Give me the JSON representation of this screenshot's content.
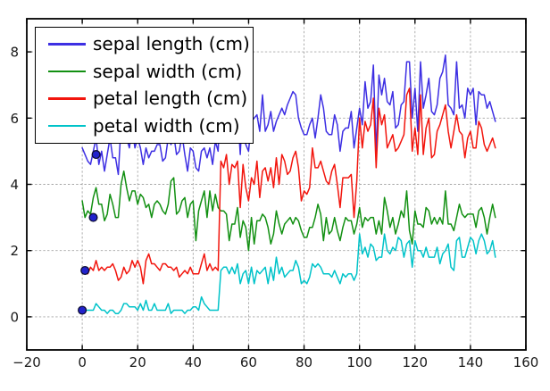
{
  "chart_data": {
    "type": "line",
    "title": "",
    "xlabel": "",
    "ylabel": "",
    "x_start": 0,
    "x_step": 1,
    "n_points": 150,
    "xlim": [
      -20,
      160
    ],
    "ylim": [
      -1,
      9
    ],
    "xticks": [
      -20,
      0,
      20,
      40,
      60,
      80,
      100,
      120,
      140,
      160
    ],
    "yticks": [
      0,
      2,
      4,
      6,
      8
    ],
    "grid": true,
    "grid_style": "dashed",
    "legend_position": "upper-left",
    "series": [
      {
        "name": "sepal length (cm)",
        "color": "#3d2fe3",
        "values": [
          5.1,
          4.9,
          4.7,
          4.6,
          5.0,
          5.4,
          4.6,
          5.0,
          4.4,
          4.9,
          5.4,
          4.8,
          4.8,
          4.3,
          5.8,
          5.7,
          5.4,
          5.1,
          5.7,
          5.1,
          5.4,
          5.1,
          4.6,
          5.1,
          4.8,
          5.0,
          5.0,
          5.2,
          5.2,
          4.7,
          4.8,
          5.4,
          5.2,
          5.5,
          4.9,
          5.0,
          5.5,
          4.9,
          4.4,
          5.1,
          5.0,
          4.5,
          4.4,
          5.0,
          5.1,
          4.8,
          5.1,
          4.6,
          5.3,
          5.0,
          7.0,
          6.4,
          6.9,
          5.5,
          6.5,
          5.7,
          6.3,
          4.9,
          6.6,
          5.2,
          5.0,
          5.9,
          6.0,
          6.1,
          5.6,
          6.7,
          5.6,
          5.8,
          6.2,
          5.6,
          5.9,
          6.1,
          6.3,
          6.1,
          6.4,
          6.6,
          6.8,
          6.7,
          6.0,
          5.7,
          5.5,
          5.5,
          5.8,
          6.0,
          5.4,
          6.0,
          6.7,
          6.3,
          5.6,
          5.5,
          5.5,
          6.1,
          5.8,
          5.0,
          5.6,
          5.7,
          5.7,
          6.2,
          5.1,
          5.7,
          6.3,
          5.8,
          7.1,
          6.3,
          6.5,
          7.6,
          4.9,
          7.3,
          6.7,
          7.2,
          6.5,
          6.4,
          6.8,
          5.7,
          5.8,
          6.4,
          6.5,
          7.7,
          7.7,
          6.0,
          6.9,
          5.6,
          7.7,
          6.3,
          6.7,
          7.2,
          6.2,
          6.1,
          6.4,
          7.2,
          7.4,
          7.9,
          6.4,
          6.3,
          6.1,
          7.7,
          6.3,
          6.4,
          6.0,
          6.9,
          6.7,
          6.9,
          5.8,
          6.8,
          6.7,
          6.7,
          6.3,
          6.5,
          6.2,
          5.9
        ]
      },
      {
        "name": "sepal width (cm)",
        "color": "#129012",
        "values": [
          3.5,
          3.0,
          3.2,
          3.1,
          3.6,
          3.9,
          3.4,
          3.4,
          2.9,
          3.1,
          3.7,
          3.4,
          3.0,
          3.0,
          4.0,
          4.4,
          3.9,
          3.5,
          3.8,
          3.8,
          3.4,
          3.7,
          3.6,
          3.3,
          3.4,
          3.0,
          3.4,
          3.5,
          3.4,
          3.2,
          3.1,
          3.4,
          4.1,
          4.2,
          3.1,
          3.2,
          3.5,
          3.6,
          3.0,
          3.4,
          3.5,
          2.3,
          3.2,
          3.5,
          3.8,
          3.0,
          3.8,
          3.2,
          3.7,
          3.3,
          3.2,
          3.2,
          3.1,
          2.3,
          2.8,
          2.8,
          3.3,
          2.4,
          2.9,
          2.7,
          2.0,
          3.0,
          2.2,
          2.9,
          2.9,
          3.1,
          3.0,
          2.7,
          2.2,
          2.5,
          3.2,
          2.8,
          2.5,
          2.8,
          2.9,
          3.0,
          2.8,
          3.0,
          2.9,
          2.6,
          2.4,
          2.4,
          2.7,
          2.7,
          3.0,
          3.4,
          3.1,
          2.3,
          3.0,
          2.5,
          2.6,
          3.0,
          2.6,
          2.3,
          2.7,
          3.0,
          2.9,
          2.9,
          2.5,
          2.8,
          3.3,
          2.7,
          3.0,
          2.9,
          3.0,
          3.0,
          2.5,
          2.9,
          2.5,
          3.6,
          3.2,
          2.7,
          3.0,
          2.5,
          2.8,
          3.2,
          3.0,
          3.8,
          2.6,
          2.2,
          3.2,
          2.8,
          2.8,
          2.7,
          3.3,
          3.2,
          2.8,
          3.0,
          2.8,
          3.0,
          2.8,
          3.8,
          2.8,
          2.8,
          2.6,
          3.0,
          3.4,
          3.1,
          3.0,
          3.1,
          3.1,
          3.1,
          2.7,
          3.2,
          3.3,
          3.0,
          2.5,
          3.0,
          3.4,
          3.0
        ]
      },
      {
        "name": "petal length (cm)",
        "color": "#f2150d",
        "values": [
          1.4,
          1.4,
          1.3,
          1.5,
          1.4,
          1.7,
          1.4,
          1.5,
          1.4,
          1.5,
          1.5,
          1.6,
          1.4,
          1.1,
          1.2,
          1.5,
          1.3,
          1.4,
          1.7,
          1.5,
          1.7,
          1.5,
          1.0,
          1.7,
          1.9,
          1.6,
          1.6,
          1.5,
          1.4,
          1.6,
          1.6,
          1.5,
          1.5,
          1.4,
          1.5,
          1.2,
          1.3,
          1.4,
          1.3,
          1.5,
          1.3,
          1.3,
          1.3,
          1.6,
          1.9,
          1.4,
          1.6,
          1.4,
          1.5,
          1.4,
          4.7,
          4.5,
          4.9,
          4.0,
          4.6,
          4.5,
          4.7,
          3.3,
          4.6,
          3.9,
          3.5,
          4.2,
          4.0,
          4.7,
          3.6,
          4.4,
          4.5,
          4.1,
          4.5,
          3.9,
          4.8,
          4.0,
          4.9,
          4.7,
          4.3,
          4.4,
          4.8,
          5.0,
          4.5,
          3.5,
          3.8,
          3.7,
          3.9,
          5.1,
          4.5,
          4.5,
          4.7,
          4.4,
          4.1,
          4.0,
          4.4,
          4.6,
          4.0,
          3.3,
          4.2,
          4.2,
          4.2,
          4.3,
          3.0,
          4.1,
          6.0,
          5.1,
          5.9,
          5.6,
          5.8,
          6.6,
          4.5,
          6.3,
          5.8,
          6.1,
          5.1,
          5.3,
          5.5,
          5.0,
          5.1,
          5.3,
          5.5,
          6.7,
          6.9,
          5.0,
          5.7,
          4.9,
          6.7,
          4.9,
          5.7,
          6.0,
          4.8,
          4.9,
          5.6,
          5.8,
          6.1,
          6.4,
          5.6,
          5.1,
          5.6,
          6.1,
          5.6,
          5.5,
          4.8,
          5.4,
          5.6,
          5.1,
          5.1,
          5.9,
          5.7,
          5.2,
          5.0,
          5.2,
          5.4,
          5.1
        ]
      },
      {
        "name": "petal width (cm)",
        "color": "#00c3c9",
        "values": [
          0.2,
          0.2,
          0.2,
          0.2,
          0.2,
          0.4,
          0.3,
          0.2,
          0.2,
          0.1,
          0.2,
          0.2,
          0.1,
          0.1,
          0.2,
          0.4,
          0.4,
          0.3,
          0.3,
          0.3,
          0.2,
          0.4,
          0.2,
          0.5,
          0.2,
          0.2,
          0.4,
          0.2,
          0.2,
          0.2,
          0.2,
          0.4,
          0.1,
          0.2,
          0.2,
          0.2,
          0.2,
          0.1,
          0.2,
          0.2,
          0.3,
          0.3,
          0.2,
          0.6,
          0.4,
          0.3,
          0.2,
          0.2,
          0.2,
          0.2,
          1.4,
          1.5,
          1.5,
          1.3,
          1.5,
          1.3,
          1.6,
          1.0,
          1.3,
          1.4,
          1.0,
          1.5,
          1.0,
          1.4,
          1.3,
          1.4,
          1.5,
          1.0,
          1.5,
          1.1,
          1.8,
          1.3,
          1.5,
          1.2,
          1.3,
          1.4,
          1.4,
          1.7,
          1.5,
          1.0,
          1.1,
          1.0,
          1.2,
          1.6,
          1.5,
          1.6,
          1.5,
          1.3,
          1.3,
          1.3,
          1.2,
          1.4,
          1.2,
          1.0,
          1.3,
          1.2,
          1.3,
          1.3,
          1.1,
          1.3,
          2.5,
          1.9,
          2.1,
          1.8,
          2.2,
          2.1,
          1.7,
          1.8,
          1.8,
          2.5,
          2.0,
          1.9,
          2.1,
          2.0,
          2.4,
          2.3,
          1.8,
          2.2,
          2.3,
          1.5,
          2.3,
          2.0,
          2.0,
          1.8,
          2.1,
          1.8,
          1.8,
          1.8,
          2.1,
          1.6,
          1.9,
          2.0,
          2.2,
          1.5,
          1.4,
          2.3,
          2.4,
          1.8,
          1.8,
          2.1,
          2.4,
          2.3,
          1.9,
          2.3,
          2.5,
          2.3,
          1.9,
          2.0,
          2.3,
          1.8
        ]
      }
    ],
    "scatter_markers": {
      "fill": "#2222cc",
      "edge": "#0d0d33",
      "points": [
        {
          "x": 0,
          "y": 0.2
        },
        {
          "x": 1,
          "y": 1.4
        },
        {
          "x": 4,
          "y": 3.0
        },
        {
          "x": 5,
          "y": 4.9
        }
      ]
    },
    "colors": {
      "axes": "#000000",
      "grid": "#a6a6a6",
      "background": "#ffffff",
      "tick_label": "#1a1a1a"
    }
  },
  "legend": {
    "entries": [
      "sepal length (cm)",
      "sepal width (cm)",
      "petal length (cm)",
      "petal width (cm)"
    ]
  }
}
